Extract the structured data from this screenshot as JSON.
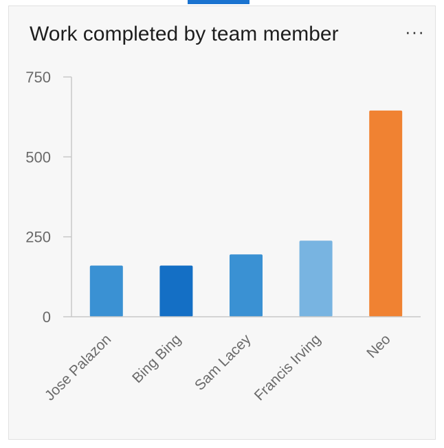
{
  "card": {
    "title": "Work completed by team member",
    "more_label": "···"
  },
  "chart_data": {
    "type": "bar",
    "title": "Work completed by team member",
    "xlabel": "",
    "ylabel": "",
    "categories": [
      "Jose Palazon",
      "Bing Bing",
      "Sam Lacey",
      "Francis Irving",
      "Neo"
    ],
    "values": [
      160,
      160,
      195,
      238,
      645
    ],
    "colors": [
      "#3a91d3",
      "#146fc5",
      "#3a91d3",
      "#78b4e1",
      "#f08232"
    ],
    "yticks": [
      0,
      250,
      500,
      750
    ],
    "ylim": [
      0,
      750
    ],
    "grid": false,
    "legend": "none"
  }
}
